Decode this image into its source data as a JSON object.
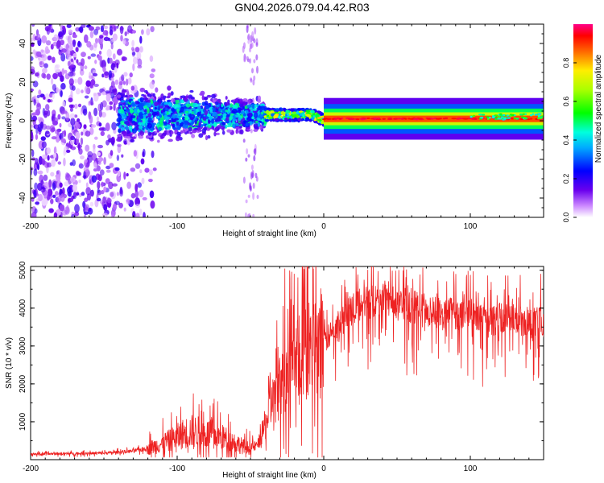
{
  "title": "GN04.2026.079.04.42.R03",
  "chart_data": [
    {
      "type": "heatmap",
      "name": "spectrogram",
      "xlabel": "Height of straight line (km)",
      "ylabel": "Frequency (Hz)",
      "xlim": [
        -200,
        150
      ],
      "ylim": [
        -50,
        50
      ],
      "xticks": [
        -200,
        -100,
        0,
        100
      ],
      "yticks": [
        40,
        20,
        0,
        -20,
        -40
      ],
      "colorbar": {
        "label": "Normalized spectral amplitude",
        "range": [
          0,
          1
        ],
        "ticks": [
          0.0,
          0.2,
          0.4,
          0.6,
          0.8
        ],
        "ticklabels": [
          "0.0",
          "0.2",
          "0.4",
          "0.6",
          "0.8"
        ]
      },
      "description_regions": [
        {
          "x_range": [
            -200,
            -115
          ],
          "freq_range": [
            -50,
            50
          ],
          "amplitude": [
            0.02,
            0.2
          ]
        },
        {
          "x_range": [
            -140,
            -40
          ],
          "freq_range": [
            -8,
            10
          ],
          "amplitude": [
            0.15,
            0.5
          ]
        },
        {
          "x_range": [
            -40,
            0
          ],
          "freq_range": [
            -3,
            6
          ],
          "amplitude": [
            0.3,
            0.8
          ]
        },
        {
          "x_range": [
            0,
            150
          ],
          "freq_range": [
            0,
            2
          ],
          "amplitude": [
            0.8,
            0.95
          ]
        }
      ]
    },
    {
      "type": "line",
      "name": "snr",
      "xlabel": "Height of straight line (km)",
      "ylabel": "SNR (10 * v/v)",
      "xlim": [
        -200,
        150
      ],
      "ylim": [
        0,
        5100
      ],
      "xticks": [
        -200,
        -100,
        0,
        100
      ],
      "yticks": [
        1000,
        2000,
        3000,
        4000,
        5000
      ],
      "color": "#ee2222",
      "series": [
        {
          "name": "SNR",
          "x": [
            -200,
            -190,
            -180,
            -170,
            -160,
            -150,
            -140,
            -130,
            -120,
            -110,
            -100,
            -95,
            -90,
            -85,
            -80,
            -75,
            -70,
            -65,
            -60,
            -55,
            -50,
            -45,
            -40,
            -35,
            -30,
            -25,
            -20,
            -15,
            -10,
            -5,
            0,
            5,
            10,
            15,
            20,
            25,
            30,
            35,
            40,
            45,
            50,
            55,
            60,
            65,
            70,
            75,
            80,
            85,
            90,
            95,
            100,
            105,
            110,
            115,
            120,
            125,
            130,
            135,
            140,
            145,
            150
          ],
          "values": [
            150,
            150,
            160,
            160,
            170,
            170,
            200,
            230,
            300,
            420,
            600,
            700,
            750,
            720,
            680,
            650,
            600,
            520,
            450,
            350,
            300,
            400,
            900,
            1500,
            1900,
            2200,
            2500,
            2700,
            2900,
            3000,
            3100,
            3300,
            3500,
            3800,
            4000,
            4100,
            4150,
            4150,
            4200,
            4150,
            4100,
            4000,
            4050,
            4000,
            3950,
            3900,
            3850,
            3900,
            3850,
            3800,
            3850,
            3750,
            3700,
            3650,
            3700,
            3800,
            3700,
            3650,
            3600,
            3650,
            3600
          ]
        }
      ]
    }
  ]
}
